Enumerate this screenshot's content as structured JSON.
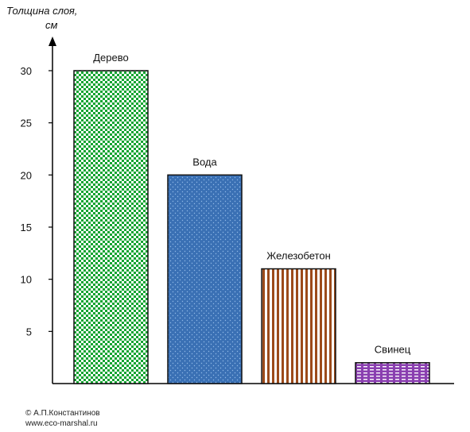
{
  "chart_data": {
    "type": "bar",
    "ylabel_line1": "Толщина слоя,",
    "ylabel_line2": "см",
    "categories": [
      "Дерево",
      "Вода",
      "Железобетон",
      "Свинец"
    ],
    "values": [
      30,
      20,
      11,
      2
    ],
    "yticks": [
      5,
      10,
      15,
      20,
      25,
      30
    ],
    "ylim": [
      0,
      33
    ],
    "grid": false,
    "bar_styles": [
      {
        "pattern": "checker",
        "fg": "#12a330",
        "bg": "#ffffff",
        "border": "#111111"
      },
      {
        "pattern": "dots",
        "fg": "#8fb8e6",
        "bg": "#3a70b4",
        "border": "#111111"
      },
      {
        "pattern": "vstripes",
        "fg": "#9c4a1a",
        "bg": "#ffffff",
        "border": "#111111"
      },
      {
        "pattern": "bricks",
        "fg": "#ffffff",
        "bg": "#8a3fb0",
        "border": "#111111"
      }
    ]
  },
  "credits": {
    "author": "© А.П.Константинов",
    "site": "www.eco-marshal.ru"
  }
}
